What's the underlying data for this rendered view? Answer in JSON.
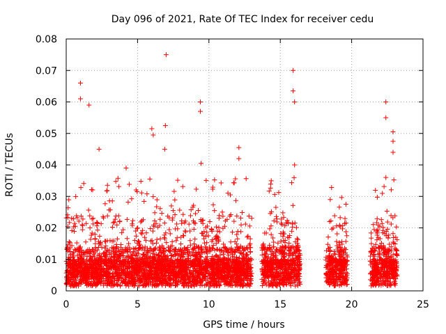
{
  "chart_data": {
    "type": "scatter",
    "title": "Day 096 of 2021, Rate Of TEC Index for receiver cedu",
    "xlabel": "GPS time / hours",
    "ylabel": "ROTI / TECUs",
    "xlim": [
      0,
      25
    ],
    "ylim": [
      0,
      0.08
    ],
    "xticks": [
      0,
      5,
      10,
      15,
      20,
      25
    ],
    "yticks": [
      0,
      0.01,
      0.02,
      0.03,
      0.04,
      0.05,
      0.06,
      0.07,
      0.08
    ],
    "xtick_labels": [
      "0",
      "5",
      "10",
      "15",
      "20",
      "25"
    ],
    "ytick_labels": [
      "0",
      "0.01",
      "0.02",
      "0.03",
      "0.04",
      "0.05",
      "0.06",
      "0.07",
      "0.08"
    ],
    "grid": true,
    "marker": "+",
    "color": "#ff0000",
    "data_segments": [
      {
        "start": 0.0,
        "end": 13.0,
        "base": 0.007
      },
      {
        "start": 13.7,
        "end": 16.4,
        "base": 0.007
      },
      {
        "start": 18.2,
        "end": 19.7,
        "base": 0.006
      },
      {
        "start": 21.3,
        "end": 23.2,
        "base": 0.006
      }
    ],
    "notable_points": [
      {
        "x": 1.0,
        "y": 0.066
      },
      {
        "x": 1.0,
        "y": 0.061
      },
      {
        "x": 1.6,
        "y": 0.059
      },
      {
        "x": 2.3,
        "y": 0.045
      },
      {
        "x": 4.2,
        "y": 0.039
      },
      {
        "x": 6.0,
        "y": 0.0515
      },
      {
        "x": 6.1,
        "y": 0.0495
      },
      {
        "x": 6.9,
        "y": 0.045
      },
      {
        "x": 6.95,
        "y": 0.0525
      },
      {
        "x": 7.0,
        "y": 0.075
      },
      {
        "x": 9.4,
        "y": 0.06
      },
      {
        "x": 9.4,
        "y": 0.057
      },
      {
        "x": 9.45,
        "y": 0.0405
      },
      {
        "x": 12.1,
        "y": 0.0455
      },
      {
        "x": 12.1,
        "y": 0.042
      },
      {
        "x": 15.9,
        "y": 0.07
      },
      {
        "x": 15.9,
        "y": 0.0635
      },
      {
        "x": 16.0,
        "y": 0.06
      },
      {
        "x": 16.0,
        "y": 0.04
      },
      {
        "x": 18.5,
        "y": 0.029
      },
      {
        "x": 19.6,
        "y": 0.0275
      },
      {
        "x": 22.4,
        "y": 0.06
      },
      {
        "x": 22.4,
        "y": 0.055
      },
      {
        "x": 22.9,
        "y": 0.0505
      },
      {
        "x": 22.9,
        "y": 0.0475
      },
      {
        "x": 22.9,
        "y": 0.044
      },
      {
        "x": 22.4,
        "y": 0.036
      }
    ]
  }
}
